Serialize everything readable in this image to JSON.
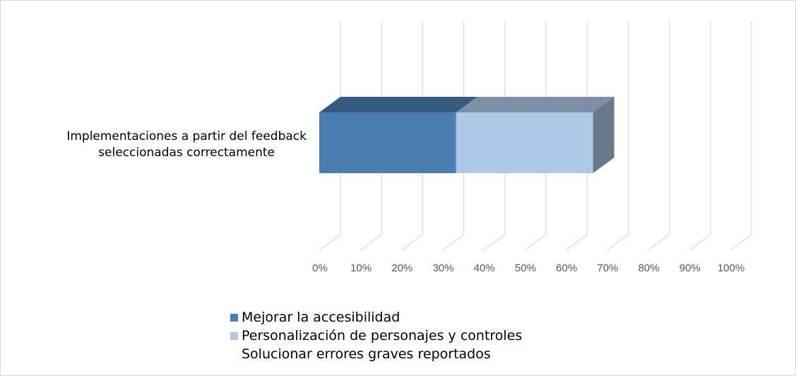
{
  "chart_data": {
    "type": "bar",
    "orientation": "horizontal",
    "stacked": true,
    "three_d": true,
    "categories": [
      "Implementaciones a partir del feedback seleccionadas correctamente"
    ],
    "category_lines": [
      "Implementaciones a partir del feedback",
      "seleccionadas correctamente"
    ],
    "series": [
      {
        "name": "Mejorar la accesibilidad",
        "values": [
          33.3
        ],
        "color": "#4a7eb3"
      },
      {
        "name": "Personalización de personajes y controles",
        "values": [
          33.3
        ],
        "color": "#aec7e5"
      },
      {
        "name": "Solucionar errores graves reportados",
        "values": [
          0
        ],
        "color": "#ffffff"
      }
    ],
    "xlim": [
      0,
      100
    ],
    "x_ticks": [
      "0%",
      "10%",
      "20%",
      "30%",
      "40%",
      "50%",
      "60%",
      "70%",
      "80%",
      "90%",
      "100%"
    ],
    "grid": true,
    "legend_position": "bottom"
  }
}
